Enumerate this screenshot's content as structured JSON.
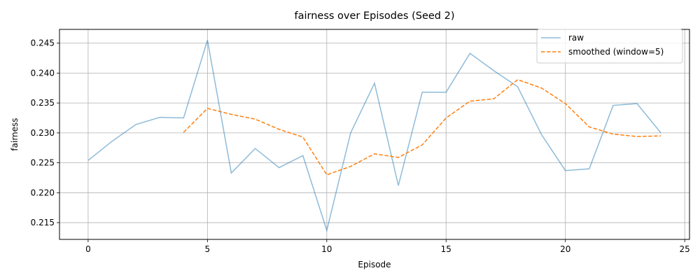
{
  "chart_data": {
    "type": "line",
    "title": "fairness over Episodes (Seed 2)",
    "xlabel": "Episode",
    "ylabel": "fairness",
    "xlim": [
      -1.2,
      25.2
    ],
    "ylim": [
      0.2122,
      0.2473
    ],
    "x_ticks": [
      0,
      5,
      10,
      15,
      20,
      25
    ],
    "y_ticks": [
      0.215,
      0.22,
      0.225,
      0.23,
      0.235,
      0.24,
      0.245
    ],
    "grid": true,
    "legend_position": "top-right",
    "series": [
      {
        "name": "raw",
        "color": "#1f77b4",
        "style": "solid",
        "x": [
          0,
          1,
          2,
          3,
          4,
          5,
          6,
          7,
          8,
          9,
          10,
          11,
          12,
          13,
          14,
          15,
          16,
          17,
          18,
          19,
          20,
          21,
          22,
          23,
          24
        ],
        "values": [
          0.2254,
          0.2286,
          0.2314,
          0.2326,
          0.2325,
          0.2455,
          0.2233,
          0.2274,
          0.2242,
          0.2262,
          0.2137,
          0.23,
          0.2383,
          0.2212,
          0.2368,
          0.2368,
          0.2433,
          0.2404,
          0.2377,
          0.2297,
          0.2237,
          0.224,
          0.2346,
          0.2349,
          0.23
        ]
      },
      {
        "name": "smoothed (window=5)",
        "color": "#ff7f0e",
        "style": "dashed",
        "x": [
          4,
          5,
          6,
          7,
          8,
          9,
          10,
          11,
          12,
          13,
          14,
          15,
          16,
          17,
          18,
          19,
          20,
          21,
          22,
          23,
          24
        ],
        "values": [
          0.2301,
          0.2341,
          0.2331,
          0.2323,
          0.2306,
          0.2293,
          0.223,
          0.2244,
          0.2265,
          0.2259,
          0.228,
          0.2325,
          0.2353,
          0.2357,
          0.2389,
          0.2375,
          0.2349,
          0.231,
          0.2298,
          0.2294,
          0.2295
        ]
      }
    ]
  }
}
